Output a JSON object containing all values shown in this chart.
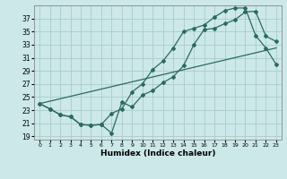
{
  "xlabel": "Humidex (Indice chaleur)",
  "background_color": "#cce8e8",
  "grid_color": "#aacccc",
  "line_color": "#2a6b5f",
  "xlim": [
    -0.5,
    23.5
  ],
  "ylim": [
    18.5,
    39.0
  ],
  "xticks": [
    0,
    1,
    2,
    3,
    4,
    5,
    6,
    7,
    8,
    9,
    10,
    11,
    12,
    13,
    14,
    15,
    16,
    17,
    18,
    19,
    20,
    21,
    22,
    23
  ],
  "yticks": [
    19,
    21,
    23,
    25,
    27,
    29,
    31,
    33,
    35,
    37
  ],
  "line1_x": [
    0,
    1,
    2,
    3,
    4,
    5,
    6,
    7,
    8,
    9,
    10,
    11,
    12,
    13,
    14,
    15,
    16,
    17,
    18,
    19,
    20,
    21,
    22,
    23
  ],
  "line1_y": [
    24.0,
    23.2,
    22.3,
    22.0,
    20.8,
    20.7,
    20.8,
    19.5,
    24.2,
    23.5,
    25.3,
    26.0,
    27.2,
    28.1,
    29.8,
    33.0,
    35.3,
    35.5,
    36.2,
    36.8,
    38.0,
    38.1,
    34.3,
    33.5
  ],
  "line2_x": [
    0,
    1,
    2,
    3,
    4,
    5,
    6,
    7,
    8,
    9,
    10,
    11,
    12,
    13,
    14,
    15,
    16,
    17,
    18,
    19,
    20,
    21,
    22,
    23
  ],
  "line2_y": [
    24.0,
    23.2,
    22.3,
    22.0,
    20.8,
    20.7,
    20.8,
    22.5,
    23.2,
    25.8,
    27.0,
    29.2,
    30.5,
    32.5,
    35.0,
    35.5,
    36.0,
    37.2,
    38.2,
    38.6,
    38.6,
    34.4,
    32.5,
    30.0
  ],
  "line3_x": [
    0,
    23
  ],
  "line3_y": [
    24.0,
    32.5
  ]
}
